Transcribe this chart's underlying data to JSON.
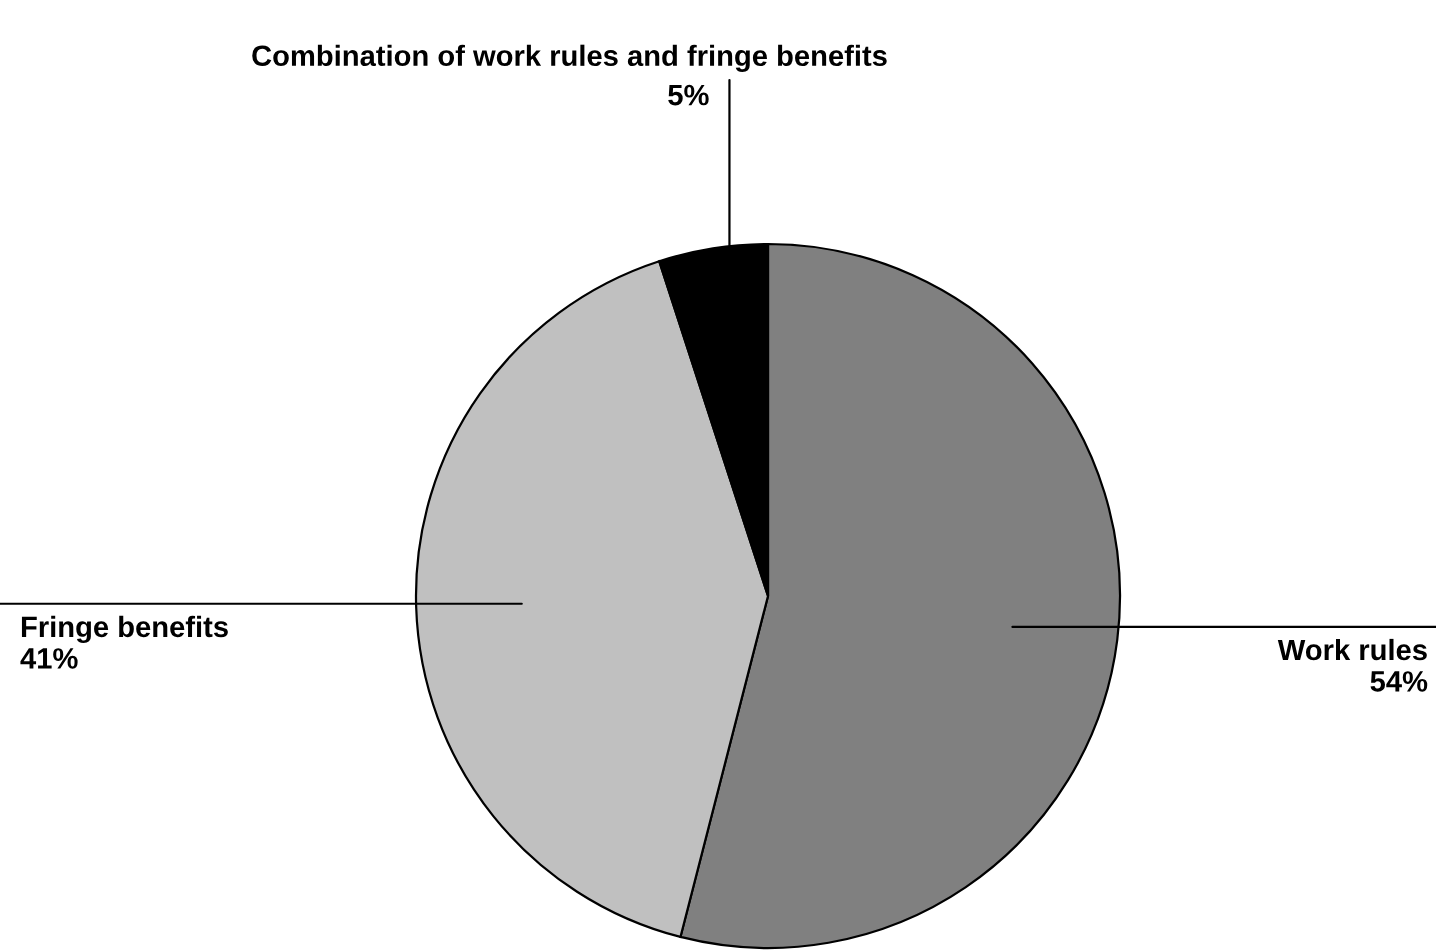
{
  "chart_data": {
    "type": "pie",
    "categories": [
      "Work rules",
      "Fringe benefits",
      "Combination of work rules and fringe benefits"
    ],
    "values": [
      54,
      41,
      5
    ],
    "colors": [
      "#808080",
      "#c0c0c0",
      "#000000"
    ],
    "value_labels": [
      "54%",
      "41%",
      "5%"
    ],
    "legend": false
  }
}
